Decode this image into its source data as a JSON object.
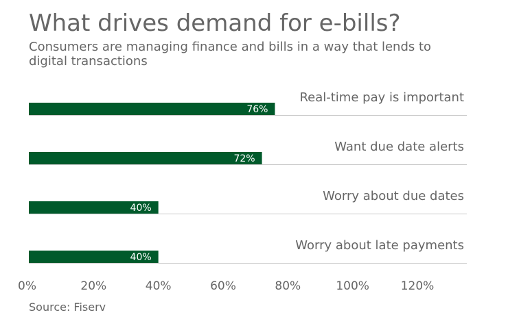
{
  "title": "What drives demand for e-bills?",
  "subtitle": "Consumers are managing finance and bills in a way that lends to digital transactions",
  "source": "Source: Fiserv",
  "chart_data": {
    "type": "bar",
    "orientation": "horizontal",
    "categories": [
      "Real-time pay is important",
      "Want due date alerts",
      "Worry about due dates",
      "Worry about late payments"
    ],
    "values": [
      76,
      72,
      40,
      40
    ],
    "data_labels": [
      "76%",
      "72%",
      "40%",
      "40%"
    ],
    "xlim": [
      0,
      120
    ],
    "x_ticks": [
      0,
      20,
      40,
      60,
      80,
      100,
      120
    ],
    "x_tick_labels": [
      "0%",
      "20%",
      "40%",
      "60%",
      "80%",
      "100%",
      "120%"
    ],
    "bar_color": "#005a2b",
    "grid": false,
    "legend": "none"
  }
}
